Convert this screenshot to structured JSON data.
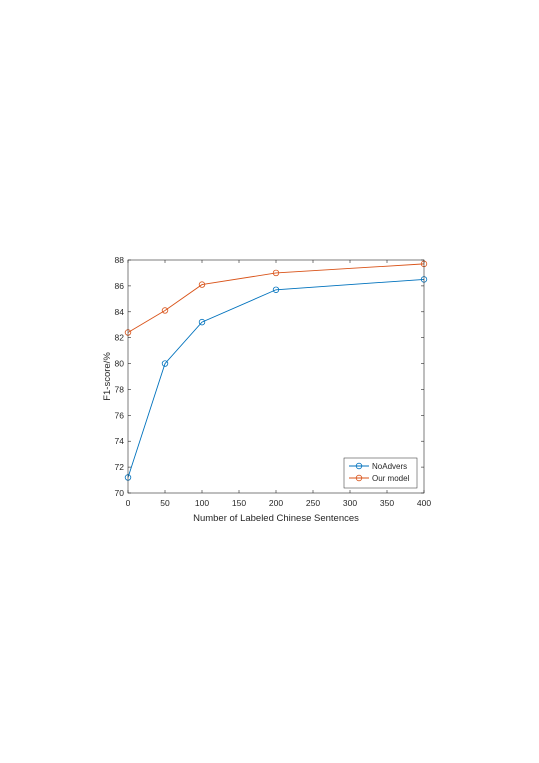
{
  "chart_data": {
    "type": "line",
    "xlabel": "Number of Labeled Chinese Sentences",
    "ylabel": "F1-score/%",
    "xlim": [
      0,
      400
    ],
    "ylim": [
      70,
      88
    ],
    "xticks": [
      "0",
      "50",
      "100",
      "150",
      "200",
      "250",
      "300",
      "350",
      "400"
    ],
    "yticks": [
      "70",
      "72",
      "74",
      "76",
      "78",
      "80",
      "82",
      "84",
      "86",
      "88"
    ],
    "grid": false,
    "legend_position": "bottom-right",
    "marker": "circle",
    "series": [
      {
        "name": "NoAdvers",
        "color": "#0072bd",
        "points": [
          {
            "x": 0,
            "y": 71.2
          },
          {
            "x": 50,
            "y": 80.0
          },
          {
            "x": 100,
            "y": 83.2
          },
          {
            "x": 200,
            "y": 85.7
          },
          {
            "x": 400,
            "y": 86.5
          }
        ]
      },
      {
        "name": "Our model",
        "color": "#d95319",
        "points": [
          {
            "x": 0,
            "y": 82.4
          },
          {
            "x": 50,
            "y": 84.1
          },
          {
            "x": 100,
            "y": 86.1
          },
          {
            "x": 200,
            "y": 87.0
          },
          {
            "x": 400,
            "y": 87.7
          }
        ]
      }
    ]
  }
}
